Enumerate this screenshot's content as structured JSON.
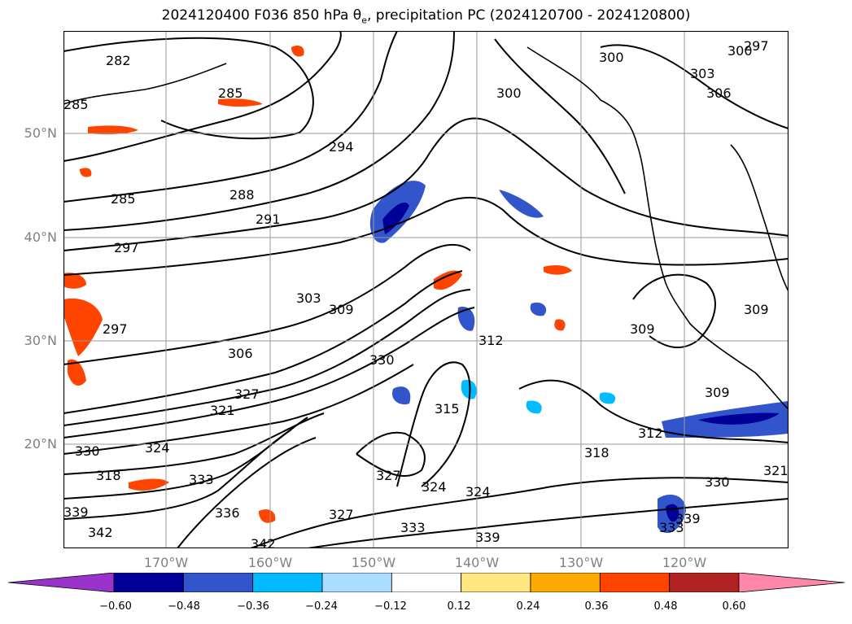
{
  "title": {
    "prefix": "2024120400 F036 850 hPa θ",
    "sub": "e",
    "suffix": ", precipitation PC (2024120700 - 2024120800)"
  },
  "lat_labels": [
    "50°N",
    "40°N",
    "30°N",
    "20°N"
  ],
  "lon_labels": [
    "170°W",
    "160°W",
    "150°W",
    "140°W",
    "130°W",
    "120°W"
  ],
  "colorbar": {
    "ticks": [
      "−0.60",
      "−0.48",
      "−0.36",
      "−0.24",
      "−0.12",
      "0.12",
      "0.24",
      "0.36",
      "0.48",
      "0.60"
    ],
    "colors": [
      "#9933cc",
      "#000099",
      "#3355cc",
      "#00bbff",
      "#aaddff",
      "#ffffff",
      "#ffe680",
      "#ffaa00",
      "#ff4400",
      "#b22222",
      "#ff88aa"
    ]
  },
  "contour_labels": [
    "282",
    "285",
    "285",
    "285",
    "288",
    "291",
    "294",
    "297",
    "297",
    "300",
    "300",
    "300",
    "297",
    "303",
    "303",
    "306",
    "306",
    "309",
    "309",
    "309",
    "309",
    "312",
    "312",
    "315",
    "318",
    "318",
    "321",
    "321",
    "324",
    "324",
    "324",
    "327",
    "327",
    "327",
    "330",
    "330",
    "330",
    "333",
    "333",
    "333",
    "336",
    "339",
    "339",
    "339",
    "342",
    "342"
  ]
}
